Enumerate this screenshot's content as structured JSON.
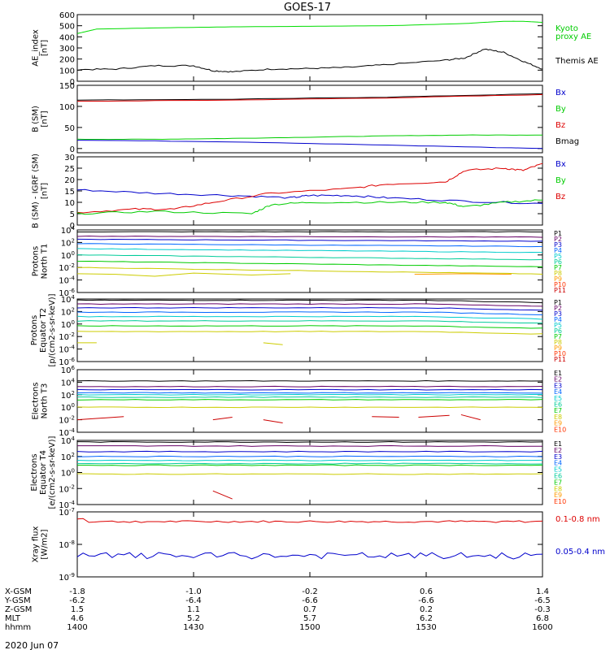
{
  "title": "GOES-17",
  "date": "2020 Jun 07",
  "footer": {
    "rows": [
      {
        "label": "X-GSM",
        "values": [
          "-1.8",
          "-1.0",
          "-0.2",
          "0.6",
          "1.4"
        ]
      },
      {
        "label": "Y-GSM",
        "values": [
          "-6.2",
          "-6.4",
          "-6.6",
          "-6.6",
          "-6.5"
        ]
      },
      {
        "label": "Z-GSM",
        "values": [
          "1.5",
          "1.1",
          "0.7",
          "0.2",
          "-0.3"
        ]
      },
      {
        "label": "MLT",
        "values": [
          "4.6",
          "5.2",
          "5.7",
          "6.2",
          "6.8"
        ]
      },
      {
        "label": "hhmm",
        "values": [
          "1400",
          "1430",
          "1500",
          "1530",
          "1600"
        ]
      }
    ]
  },
  "chart_data": [
    {
      "type": "line",
      "panel": "ae",
      "ylabel": [
        "AE_index",
        "[nT]"
      ],
      "ylim": [
        0,
        600
      ],
      "ticks": [
        "0",
        "100",
        "200",
        "300",
        "400",
        "500",
        "600"
      ],
      "x_minutes": [
        0,
        120
      ],
      "legend": [
        {
          "text": "Kyoto",
          "color": "#00cc00"
        },
        {
          "text": "proxy AE",
          "color": "#00cc00"
        },
        {
          "text": "Themis AE",
          "color": "#000000"
        }
      ],
      "series": [
        {
          "color": "#00dd00",
          "points": [
            [
              0,
              430
            ],
            [
              5,
              470
            ],
            [
              20,
              480
            ],
            [
              40,
              490
            ],
            [
              60,
              495
            ],
            [
              80,
              500
            ],
            [
              100,
              520
            ],
            [
              110,
              540
            ],
            [
              115,
              540
            ],
            [
              120,
              530
            ]
          ]
        },
        {
          "color": "#000000",
          "points": [
            [
              0,
              105
            ],
            [
              10,
              110
            ],
            [
              20,
              140
            ],
            [
              30,
              140
            ],
            [
              35,
              95
            ],
            [
              40,
              85
            ],
            [
              50,
              110
            ],
            [
              60,
              115
            ],
            [
              70,
              125
            ],
            [
              80,
              150
            ],
            [
              95,
              190
            ],
            [
              100,
              210
            ],
            [
              105,
              290
            ],
            [
              110,
              260
            ],
            [
              115,
              180
            ],
            [
              120,
              110
            ]
          ]
        }
      ]
    },
    {
      "type": "line",
      "panel": "bsm",
      "ylabel": [
        "B (SM)",
        "[nT]"
      ],
      "ylim": [
        -10,
        150
      ],
      "ticks": [
        "0",
        "50",
        "100",
        "150"
      ],
      "legend": [
        {
          "text": "Bx",
          "color": "#0000cc"
        },
        {
          "text": "By",
          "color": "#00cc00"
        },
        {
          "text": "Bz",
          "color": "#dd0000"
        },
        {
          "text": "Bmag",
          "color": "#000000"
        }
      ],
      "series": [
        {
          "color": "#000000",
          "points": [
            [
              0,
              115
            ],
            [
              40,
              117
            ],
            [
              80,
              122
            ],
            [
              120,
              130
            ]
          ]
        },
        {
          "color": "#dd0000",
          "points": [
            [
              0,
              112
            ],
            [
              40,
              115
            ],
            [
              80,
              120
            ],
            [
              120,
              128
            ]
          ]
        },
        {
          "color": "#00cc00",
          "points": [
            [
              0,
              22
            ],
            [
              20,
              22
            ],
            [
              40,
              24
            ],
            [
              60,
              27
            ],
            [
              80,
              30
            ],
            [
              100,
              32
            ],
            [
              120,
              32
            ]
          ]
        },
        {
          "color": "#0000cc",
          "points": [
            [
              0,
              20
            ],
            [
              40,
              16
            ],
            [
              80,
              8
            ],
            [
              120,
              0
            ]
          ]
        }
      ]
    },
    {
      "type": "line",
      "panel": "bmodel",
      "ylabel": [
        "B (SM) - IGRF (SM)",
        "[nT]"
      ],
      "ylim": [
        0,
        30
      ],
      "ticks": [
        "0",
        "5",
        "10",
        "15",
        "20",
        "25",
        "30"
      ],
      "legend": [
        {
          "text": "Bx",
          "color": "#0000cc"
        },
        {
          "text": "By",
          "color": "#00cc00"
        },
        {
          "text": "Bz",
          "color": "#dd0000"
        }
      ],
      "series": [
        {
          "color": "#0000cc",
          "points": [
            [
              0,
              15.5
            ],
            [
              20,
              14
            ],
            [
              40,
              13
            ],
            [
              55,
              12
            ],
            [
              60,
              13
            ],
            [
              70,
              13
            ],
            [
              80,
              12
            ],
            [
              100,
              10.5
            ],
            [
              120,
              9.5
            ]
          ]
        },
        {
          "color": "#dd0000",
          "points": [
            [
              0,
              5.5
            ],
            [
              15,
              7
            ],
            [
              25,
              7
            ],
            [
              35,
              10
            ],
            [
              50,
              14
            ],
            [
              70,
              16
            ],
            [
              80,
              18
            ],
            [
              95,
              19
            ],
            [
              100,
              24
            ],
            [
              110,
              25
            ],
            [
              115,
              24
            ],
            [
              120,
              27
            ]
          ]
        },
        {
          "color": "#00cc00",
          "points": [
            [
              0,
              5
            ],
            [
              20,
              6
            ],
            [
              45,
              5
            ],
            [
              50,
              9
            ],
            [
              60,
              10
            ],
            [
              80,
              10
            ],
            [
              95,
              10
            ],
            [
              100,
              8
            ],
            [
              110,
              10
            ],
            [
              120,
              11
            ]
          ]
        }
      ]
    },
    {
      "type": "line",
      "panel": "pro1",
      "scale": "log",
      "ylabel": [
        "Protons",
        "North T1"
      ],
      "ylim_exp": [
        -6,
        4
      ],
      "ticks": [
        "10-6",
        "10-4",
        "10-2",
        "100",
        "102",
        "104"
      ],
      "legend_channels": [
        "P1",
        "P2",
        "P3",
        "P4",
        "P5",
        "P6",
        "P7",
        "P8",
        "P9",
        "P10",
        "P11"
      ]
    },
    {
      "type": "line",
      "panel": "pro2",
      "scale": "log",
      "ylabel": [
        "Protons",
        "Equator T2",
        "[p/(cm2-s-sr-keV)]"
      ],
      "ylim_exp": [
        -6,
        4
      ],
      "ticks": [
        "10-6",
        "10-4",
        "10-2",
        "100",
        "102",
        "104"
      ],
      "legend_channels": [
        "P1",
        "P2",
        "P3",
        "P4",
        "P5",
        "P6",
        "P7",
        "P8",
        "P9",
        "P10",
        "P11"
      ]
    },
    {
      "type": "line",
      "panel": "ele1",
      "scale": "log",
      "ylabel": [
        "Electrons",
        "North T3"
      ],
      "ylim_exp": [
        -4,
        6
      ],
      "ticks": [
        "10-4",
        "10-2",
        "100",
        "102",
        "104",
        "106"
      ],
      "legend_channels": [
        "E1",
        "E2",
        "E3",
        "E4",
        "E5",
        "E6",
        "E7",
        "E8",
        "E9",
        "E10"
      ]
    },
    {
      "type": "line",
      "panel": "ele2",
      "scale": "log",
      "ylabel": [
        "Electrons",
        "Equator T4",
        "[e/(cm2-s-sr-keV)]"
      ],
      "ylim_exp": [
        -4,
        4
      ],
      "ticks": [
        "10-4",
        "10-2",
        "100",
        "102",
        "104"
      ],
      "legend_channels": [
        "E1",
        "E2",
        "E3",
        "E4",
        "E5",
        "E6",
        "E7",
        "E8",
        "E9",
        "E10"
      ]
    },
    {
      "type": "line",
      "panel": "xray",
      "scale": "log",
      "ylabel": [
        "Xray flux",
        "[W/m2]"
      ],
      "ylim_exp": [
        -9,
        -7
      ],
      "ticks": [
        "10-9",
        "10-8",
        "10-7"
      ],
      "legend": [
        {
          "text": "0.1-0.8 nm",
          "color": "#dd0000"
        },
        {
          "text": "0.05-0.4 nm",
          "color": "#0000cc"
        }
      ]
    }
  ]
}
